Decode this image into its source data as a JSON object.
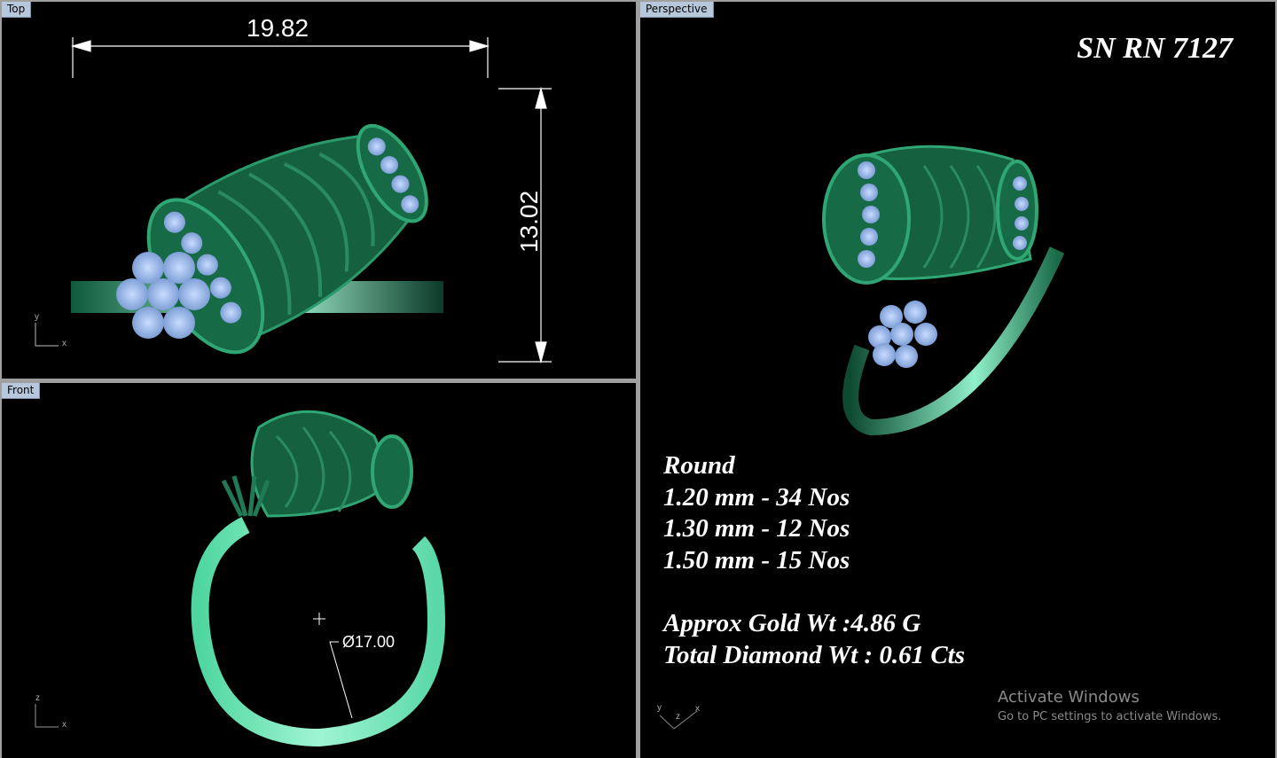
{
  "viewports": {
    "top": {
      "label": "Top",
      "dim_width": "19.82",
      "dim_height": "13.02",
      "axis_x": "x",
      "axis_y": "y"
    },
    "front": {
      "label": "Front",
      "dim_diameter": "Ø17.00",
      "axis_x": "x",
      "axis_z": "z"
    },
    "perspective": {
      "label": "Perspective",
      "axis_x": "x",
      "axis_y": "y",
      "axis_z": "z"
    }
  },
  "design": {
    "serial": "SN RN 7127",
    "stone_shape": "Round",
    "stones": [
      "1.20 mm - 34 Nos",
      "1.30 mm - 12 Nos",
      "1.50 mm - 15 Nos"
    ],
    "gold_weight": "Approx Gold Wt :4.86 G",
    "diamond_weight": "Total Diamond Wt : 0.61 Cts"
  },
  "watermark": {
    "title": "Activate Windows",
    "subtitle": "Go to PC settings to activate Windows."
  },
  "colors": {
    "metal": "#1f7a55",
    "metal_light": "#7fe8c0",
    "stone": "#9ab8e8",
    "viewport_bg": "#000000",
    "label_bg": "#b8c8dc"
  }
}
